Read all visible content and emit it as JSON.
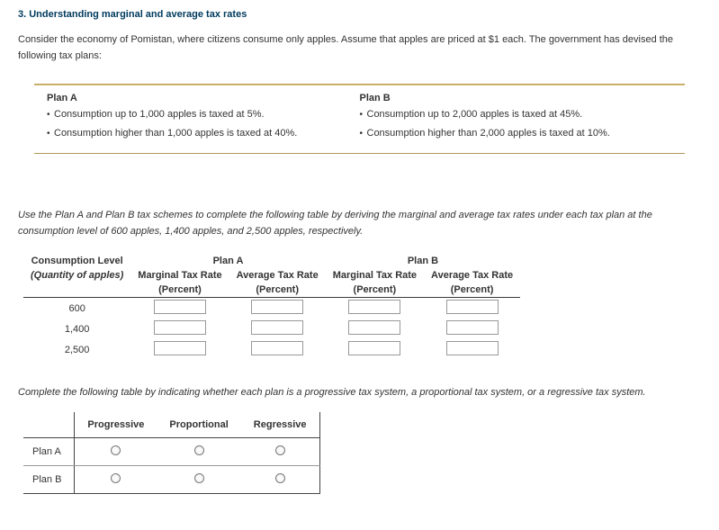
{
  "heading": "3. Understanding marginal and average tax rates",
  "intro": "Consider the economy of Pomistan, where citizens consume only apples. Assume that apples are priced at $1 each. The government has devised the following tax plans:",
  "plans": {
    "a": {
      "title": "Plan A",
      "bullets": [
        "Consumption up to 1,000 apples is taxed at 5%.",
        "Consumption higher than 1,000 apples is taxed at 40%."
      ]
    },
    "b": {
      "title": "Plan B",
      "bullets": [
        "Consumption up to 2,000 apples is taxed at 45%.",
        "Consumption higher than 2,000 apples is taxed at 10%."
      ]
    }
  },
  "instr1": "Use the Plan A and Plan B tax schemes to complete the following table by deriving the marginal and average tax rates under each tax plan at the consumption level of 600 apples, 1,400 apples, and 2,500 apples, respectively.",
  "rates_table": {
    "col_group_left": "Consumption Level",
    "col_group_left_sub": "(Quantity of apples)",
    "col_group_a": "Plan A",
    "col_group_b": "Plan B",
    "marg_hdr": "Marginal Tax Rate",
    "avg_hdr": "Average Tax Rate",
    "unit": "(Percent)",
    "levels": [
      "600",
      "1,400",
      "2,500"
    ]
  },
  "instr2": "Complete the following table by indicating whether each plan is a progressive tax system, a proportional tax system, or a regressive tax system.",
  "classify": {
    "cols": [
      "Progressive",
      "Proportional",
      "Regressive"
    ],
    "rows": [
      "Plan A",
      "Plan B"
    ]
  },
  "hr_colors": {
    "thick": "#b08d3e",
    "thin": "#b5975a"
  }
}
